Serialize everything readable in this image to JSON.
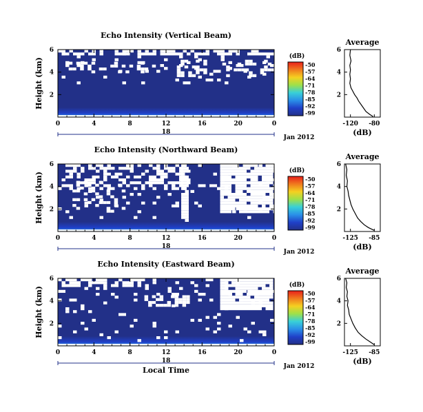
{
  "colorbar_unit": "(dB)",
  "colorbar_ticks": [
    "-50",
    "-57",
    "-64",
    "-71",
    "-78",
    "-85",
    "-92",
    "-99"
  ],
  "colorbar_colors": [
    "#e8201a",
    "#f07a1e",
    "#f5d020",
    "#9ee04a",
    "#38d0d8",
    "#2a90e8",
    "#2040c8",
    "#223088"
  ],
  "date_label": "Jan 2012",
  "day_label": "18",
  "xlabel": "Local Time",
  "avg_title": "Average",
  "avg_xlabel": "(dB)",
  "chart_data": [
    {
      "type": "heatmap",
      "title": "Echo Intensity (Vertical Beam)",
      "ylabel": "Height (km)",
      "x_ticks": [
        "0",
        "4",
        "8",
        "12",
        "16",
        "20",
        "0"
      ],
      "y_ticks": [
        "6",
        "4",
        "2"
      ],
      "xlim": [
        0,
        24
      ],
      "ylim": [
        0,
        6
      ],
      "background_value_db": -99,
      "surface_layer_value_db": -92,
      "average_profile": {
        "x_ticks": [
          "-120",
          "-80"
        ],
        "y_ticks": [
          "6",
          "4",
          "2"
        ],
        "xlim": [
          -130,
          -70
        ],
        "ylim": [
          0,
          6
        ],
        "points": [
          [
            -120,
            6.0
          ],
          [
            -121,
            5.5
          ],
          [
            -119,
            5.0
          ],
          [
            -121,
            4.6
          ],
          [
            -120,
            4.2
          ],
          [
            -121,
            3.8
          ],
          [
            -120,
            3.4
          ],
          [
            -121,
            3.0
          ],
          [
            -119,
            2.6
          ],
          [
            -116,
            2.3
          ],
          [
            -113,
            2.0
          ],
          [
            -109,
            1.7
          ],
          [
            -106,
            1.4
          ],
          [
            -102,
            1.1
          ],
          [
            -98,
            0.8
          ],
          [
            -94,
            0.5
          ],
          [
            -88,
            0.25
          ],
          [
            -82,
            0.05
          ]
        ]
      }
    },
    {
      "type": "heatmap",
      "title": "Echo Intensity (Northward Beam)",
      "ylabel": "Height (km)",
      "x_ticks": [
        "0",
        "4",
        "8",
        "12",
        "16",
        "20",
        "0"
      ],
      "y_ticks": [
        "6",
        "4",
        "2"
      ],
      "xlim": [
        0,
        24
      ],
      "ylim": [
        0,
        6
      ],
      "background_value_db": -99,
      "surface_layer_value_db": -92,
      "average_profile": {
        "x_ticks": [
          "-125",
          "-85"
        ],
        "y_ticks": [
          "6",
          "4",
          "2"
        ],
        "xlim": [
          -135,
          -75
        ],
        "ylim": [
          0,
          6
        ],
        "points": [
          [
            -133,
            6.0
          ],
          [
            -131,
            5.5
          ],
          [
            -132,
            5.0
          ],
          [
            -130,
            4.5
          ],
          [
            -131,
            4.0
          ],
          [
            -129,
            3.6
          ],
          [
            -128,
            3.2
          ],
          [
            -126,
            2.8
          ],
          [
            -124,
            2.4
          ],
          [
            -121,
            2.0
          ],
          [
            -117,
            1.6
          ],
          [
            -113,
            1.2
          ],
          [
            -108,
            0.9
          ],
          [
            -102,
            0.6
          ],
          [
            -95,
            0.35
          ],
          [
            -85,
            0.1
          ]
        ]
      }
    },
    {
      "type": "heatmap",
      "title": "Echo Intensity (Eastward Beam)",
      "ylabel": "Height (km)",
      "x_ticks": [
        "0",
        "4",
        "8",
        "12",
        "16",
        "20",
        "0"
      ],
      "y_ticks": [
        "6",
        "4",
        "2"
      ],
      "xlim": [
        0,
        24
      ],
      "ylim": [
        0,
        6
      ],
      "background_value_db": -99,
      "surface_layer_value_db": -92,
      "average_profile": {
        "x_ticks": [
          "-125",
          "-85"
        ],
        "y_ticks": [
          "6",
          "4",
          "2"
        ],
        "xlim": [
          -135,
          -75
        ],
        "ylim": [
          0,
          6
        ],
        "points": [
          [
            -133,
            6.0
          ],
          [
            -131,
            5.6
          ],
          [
            -132,
            5.2
          ],
          [
            -130,
            4.8
          ],
          [
            -131,
            4.4
          ],
          [
            -129,
            4.0
          ],
          [
            -130,
            3.6
          ],
          [
            -128,
            3.2
          ],
          [
            -127,
            2.8
          ],
          [
            -124,
            2.4
          ],
          [
            -121,
            2.0
          ],
          [
            -117,
            1.6
          ],
          [
            -112,
            1.2
          ],
          [
            -106,
            0.9
          ],
          [
            -99,
            0.6
          ],
          [
            -92,
            0.35
          ],
          [
            -85,
            0.1
          ]
        ]
      }
    }
  ]
}
